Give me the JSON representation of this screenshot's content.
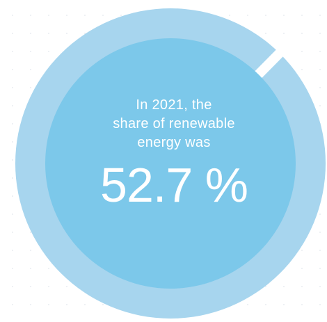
{
  "infographic": {
    "caption_line1": "In 2021, the",
    "caption_line2": "share of renewable",
    "caption_line3": "energy was",
    "value_text": "52.7 %",
    "share_fraction": 0.527,
    "colors": {
      "ring": "#a7d5ee",
      "disc": "#7cc8ea",
      "text": "#ffffff",
      "background": "#ffffff"
    }
  }
}
